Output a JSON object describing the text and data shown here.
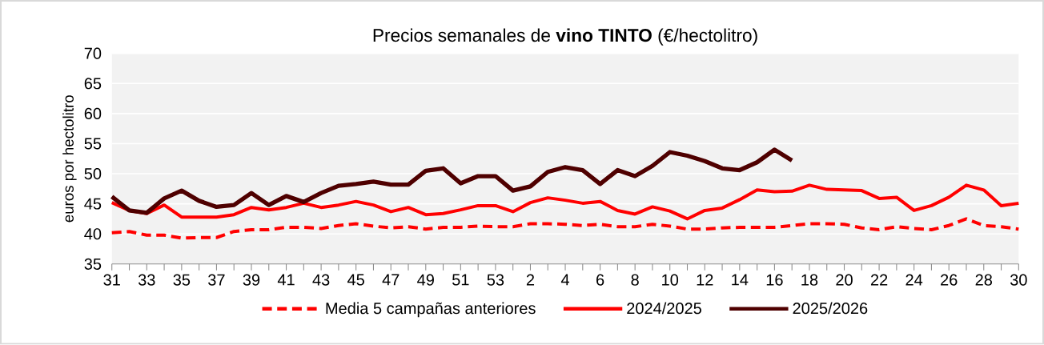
{
  "chart_data": {
    "type": "line",
    "title": "Precios semanales de **vino TINTO** (€/hectolitro)",
    "ylabel": "euros por hectolitro",
    "categories": [
      "31",
      null,
      "33",
      null,
      "35",
      null,
      "37",
      null,
      "39",
      null,
      "41",
      null,
      "43",
      null,
      "45",
      null,
      "47",
      null,
      "49",
      null,
      "51",
      null,
      "53",
      null,
      "2",
      null,
      "4",
      null,
      "6",
      null,
      "8",
      null,
      "10",
      null,
      "12",
      null,
      "14",
      null,
      "16",
      null,
      "18",
      null,
      "20",
      null,
      "22",
      null,
      "24",
      null,
      "26",
      null,
      "28",
      null,
      "30"
    ],
    "ylim": [
      35,
      70
    ],
    "yticks": [
      35,
      40,
      45,
      50,
      55,
      60,
      65,
      70
    ],
    "grid": "y",
    "legend": "bottom",
    "series": [
      {
        "name": "Media 5 campañas anteriores",
        "color": "#ff0000",
        "line_style": "dashed",
        "values": [
          40.2,
          40.4,
          39.8,
          39.8,
          39.3,
          39.4,
          39.4,
          40.4,
          40.7,
          40.7,
          41.1,
          41.1,
          40.9,
          41.4,
          41.7,
          41.3,
          41.0,
          41.2,
          40.8,
          41.1,
          41.1,
          41.3,
          41.2,
          41.2,
          41.7,
          41.7,
          41.6,
          41.4,
          41.6,
          41.2,
          41.2,
          41.6,
          41.3,
          40.8,
          40.8,
          41.0,
          41.1,
          41.1,
          41.1,
          41.4,
          41.7,
          41.7,
          41.6,
          41.0,
          40.7,
          41.2,
          40.9,
          40.7,
          41.4,
          42.5,
          41.4,
          41.2,
          40.8
        ]
      },
      {
        "name": "2024/2025",
        "color": "#ff0000",
        "line_style": "solid",
        "values": [
          45.2,
          43.9,
          43.4,
          44.8,
          42.8,
          42.8,
          42.8,
          43.2,
          44.4,
          44.0,
          44.4,
          45.1,
          44.4,
          44.8,
          45.4,
          44.8,
          43.7,
          44.4,
          43.2,
          43.4,
          44.0,
          44.7,
          44.7,
          43.7,
          45.2,
          46.0,
          45.6,
          45.1,
          45.4,
          43.9,
          43.3,
          44.5,
          43.8,
          42.5,
          43.9,
          44.3,
          45.7,
          47.3,
          47.0,
          47.1,
          48.1,
          47.4,
          47.3,
          47.2,
          45.9,
          46.1,
          43.9,
          44.7,
          46.1,
          48.1,
          47.3,
          44.7,
          45.1
        ]
      },
      {
        "name": "2025/2026",
        "color": "#4f0000",
        "line_style": "solid",
        "values": [
          46.2,
          43.9,
          43.5,
          45.9,
          47.2,
          45.5,
          44.5,
          44.8,
          46.8,
          44.8,
          46.3,
          45.3,
          46.8,
          48.0,
          48.3,
          48.7,
          48.2,
          48.2,
          50.5,
          50.9,
          48.4,
          49.6,
          49.6,
          47.2,
          47.9,
          50.3,
          51.1,
          50.6,
          48.3,
          50.6,
          49.6,
          51.3,
          53.6,
          53.0,
          52.1,
          50.9,
          50.6,
          51.9,
          54.0,
          52.2,
          null,
          null,
          null,
          null,
          null,
          null,
          null,
          null,
          null,
          null,
          null,
          null,
          null
        ]
      }
    ]
  }
}
